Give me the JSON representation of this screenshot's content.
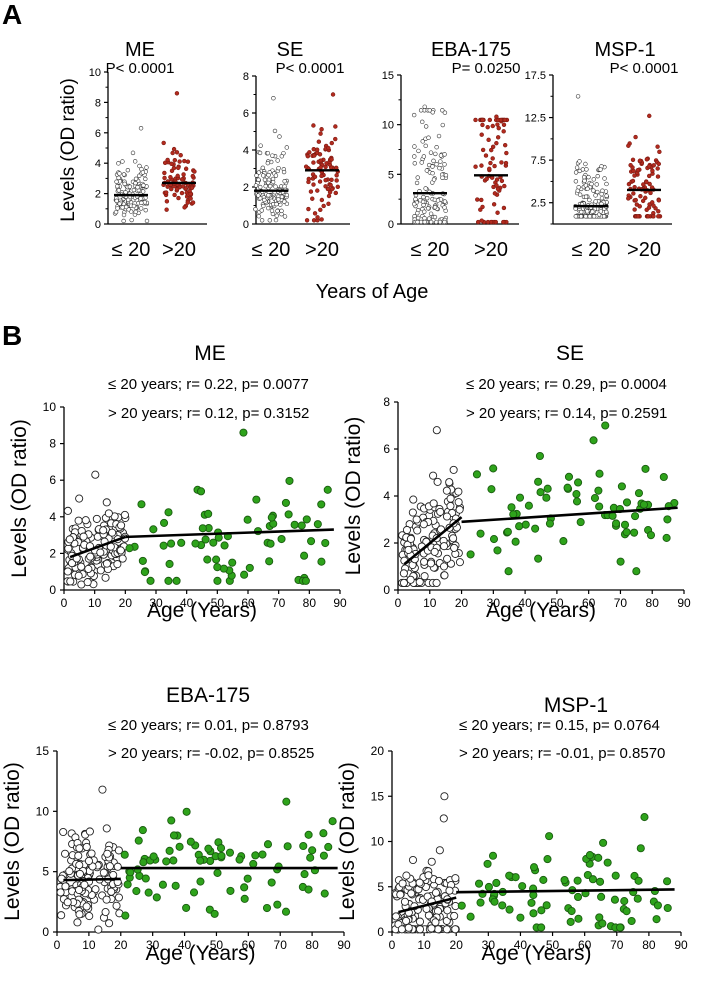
{
  "panel_a": {
    "label": "A",
    "ylabel": "Levels (OD ratio)",
    "xlabel": "Years of Age",
    "group_labels": [
      "≤ 20",
      ">20"
    ],
    "colors": {
      "le20": "#ffffff",
      "gt20": "#b22a1e",
      "median": "#000000"
    }
  },
  "panel_b": {
    "label": "B",
    "ylabel": "Levels (OD ratio)",
    "xlabel": "Age (Years)",
    "colors": {
      "le20": "#ffffff",
      "gt20": "#2ea31b",
      "line": "#000000"
    }
  },
  "chart_data": [
    {
      "id": "a-me",
      "type": "scatter",
      "title": "ME",
      "pvalue": "P< 0.0001",
      "ylim": [
        0,
        10
      ],
      "yticks": [
        "0",
        "2",
        "4",
        "6",
        "8",
        "10"
      ],
      "categories": [
        "≤ 20",
        ">20"
      ],
      "series": [
        {
          "name": "≤ 20",
          "n": 150,
          "median": 1.9,
          "q1": 1.35,
          "q3": 2.7,
          "max": 6.3
        },
        {
          "name": ">20",
          "n": 90,
          "median": 2.7,
          "q1": 2.1,
          "q3": 3.5,
          "max": 8.6
        }
      ]
    },
    {
      "id": "a-se",
      "type": "scatter",
      "title": "SE",
      "pvalue": "P< 0.0001",
      "ylim": [
        0,
        8
      ],
      "yticks": [
        "0",
        "2",
        "4",
        "6",
        "8"
      ],
      "categories": [
        "≤ 20",
        ">20"
      ],
      "series": [
        {
          "name": "≤ 20",
          "n": 150,
          "median": 1.8,
          "q1": 1.3,
          "q3": 2.6,
          "max": 6.8
        },
        {
          "name": ">20",
          "n": 90,
          "median": 2.9,
          "q1": 2.0,
          "q3": 3.8,
          "max": 7.0
        }
      ]
    },
    {
      "id": "a-eba",
      "type": "scatter",
      "title": "EBA-175",
      "pvalue": "P= 0.0250",
      "ylim": [
        0,
        15
      ],
      "yticks": [
        "0",
        "5",
        "10",
        "15"
      ],
      "categories": [
        "≤ 20",
        ">20"
      ],
      "series": [
        {
          "name": "≤ 20",
          "n": 150,
          "median": 3.1,
          "q1": 0.9,
          "q3": 7.5,
          "max": 11.8
        },
        {
          "name": ">20",
          "n": 80,
          "median": 4.9,
          "q1": 2.3,
          "q3": 8.0,
          "max": 10.8
        }
      ]
    },
    {
      "id": "a-msp",
      "type": "scatter",
      "title": "MSP-1",
      "pvalue": "P< 0.0001",
      "ylim": [
        0,
        17.5
      ],
      "yticks": [
        "2.5",
        "7.5",
        "12.5",
        "17.5"
      ],
      "categories": [
        "≤ 20",
        ">20"
      ],
      "series": [
        {
          "name": "≤ 20",
          "n": 150,
          "median": 2.1,
          "q1": 1.0,
          "q3": 4.0,
          "max": 15.0
        },
        {
          "name": ">20",
          "n": 90,
          "median": 4.0,
          "q1": 2.3,
          "q3": 6.0,
          "max": 12.7
        }
      ]
    },
    {
      "id": "b-me",
      "type": "scatter",
      "title": "ME",
      "stats": [
        "≤ 20 years; r= 0.22, p= 0.0077",
        "> 20 years; r= 0.12, p= 0.3152"
      ],
      "xlim": [
        0,
        90
      ],
      "ylim": [
        0,
        10
      ],
      "xticks": [
        "0",
        "10",
        "20",
        "30",
        "40",
        "50",
        "60",
        "70",
        "80",
        "90"
      ],
      "yticks": [
        "0",
        "2",
        "4",
        "6",
        "8",
        "10"
      ],
      "fit_le20": {
        "x": [
          2,
          20
        ],
        "y": [
          1.8,
          2.9
        ]
      },
      "fit_gt20": {
        "x": [
          20,
          88
        ],
        "y": [
          2.9,
          3.3
        ]
      },
      "series": [
        {
          "name": "≤ 20",
          "n": 150,
          "xrange": [
            1,
            20
          ],
          "yrange": [
            0.3,
            6.3
          ]
        },
        {
          "name": "> 20",
          "n": 70,
          "xrange": [
            21,
            87
          ],
          "yrange": [
            0.5,
            8.6
          ]
        }
      ]
    },
    {
      "id": "b-se",
      "type": "scatter",
      "title": "SE",
      "stats": [
        "≤ 20 years; r= 0.29, p= 0.0004",
        "> 20 years; r= 0.14, p= 0.2591"
      ],
      "xlim": [
        0,
        90
      ],
      "ylim": [
        0,
        8
      ],
      "xticks": [
        "0",
        "10",
        "20",
        "30",
        "40",
        "50",
        "60",
        "70",
        "80",
        "90"
      ],
      "yticks": [
        "0",
        "2",
        "4",
        "6",
        "8"
      ],
      "fit_le20": {
        "x": [
          2,
          20
        ],
        "y": [
          1.1,
          3.1
        ]
      },
      "fit_gt20": {
        "x": [
          20,
          88
        ],
        "y": [
          2.9,
          3.5
        ]
      },
      "series": [
        {
          "name": "≤ 20",
          "n": 150,
          "xrange": [
            1,
            20
          ],
          "yrange": [
            0.3,
            6.8
          ]
        },
        {
          "name": "> 20",
          "n": 70,
          "xrange": [
            21,
            87
          ],
          "yrange": [
            0.8,
            7.0
          ]
        }
      ]
    },
    {
      "id": "b-eba",
      "type": "scatter",
      "title": "EBA-175",
      "stats": [
        "≤ 20 years; r= 0.01, p= 0.8793",
        "> 20 years; r= -0.02, p= 0.8525"
      ],
      "xlim": [
        0,
        90
      ],
      "ylim": [
        0,
        15
      ],
      "xticks": [
        "0",
        "10",
        "20",
        "30",
        "40",
        "50",
        "60",
        "70",
        "80",
        "90"
      ],
      "yticks": [
        "0",
        "5",
        "10",
        "15"
      ],
      "fit_le20": {
        "x": [
          2,
          20
        ],
        "y": [
          4.3,
          4.4
        ]
      },
      "fit_gt20": {
        "x": [
          20,
          88
        ],
        "y": [
          5.3,
          5.3
        ]
      },
      "series": [
        {
          "name": "≤ 20",
          "n": 150,
          "xrange": [
            1,
            20
          ],
          "yrange": [
            0.2,
            11.8
          ]
        },
        {
          "name": "> 20",
          "n": 80,
          "xrange": [
            21,
            87
          ],
          "yrange": [
            0.5,
            10.8
          ]
        }
      ]
    },
    {
      "id": "b-msp",
      "type": "scatter",
      "title": "MSP-1",
      "stats": [
        "≤ 20 years; r= 0.15, p= 0.0764",
        "> 20 years; r= -0.01, p= 0.8570"
      ],
      "xlim": [
        0,
        90
      ],
      "ylim": [
        0,
        20
      ],
      "xticks": [
        "0",
        "10",
        "20",
        "30",
        "40",
        "50",
        "60",
        "70",
        "80",
        "90"
      ],
      "yticks": [
        "0",
        "5",
        "10",
        "15",
        "20"
      ],
      "fit_le20": {
        "x": [
          2,
          20
        ],
        "y": [
          2.2,
          3.8
        ]
      },
      "fit_gt20": {
        "x": [
          20,
          88
        ],
        "y": [
          4.4,
          4.7
        ]
      },
      "series": [
        {
          "name": "≤ 20",
          "n": 150,
          "xrange": [
            1,
            20
          ],
          "yrange": [
            0.3,
            15.0
          ]
        },
        {
          "name": "> 20",
          "n": 80,
          "xrange": [
            21,
            87
          ],
          "yrange": [
            0.5,
            12.7
          ]
        }
      ]
    }
  ]
}
